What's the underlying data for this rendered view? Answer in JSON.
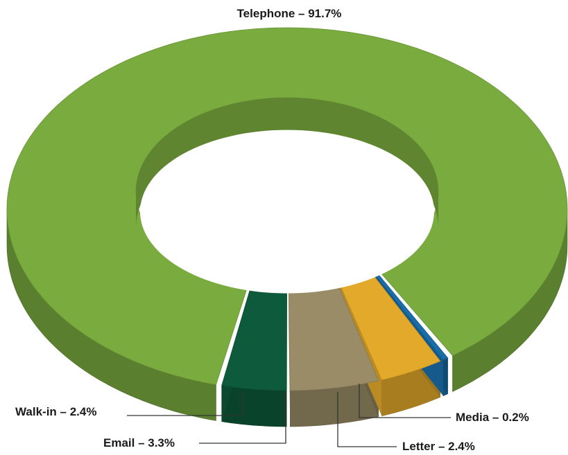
{
  "chart_data": {
    "type": "pie",
    "variant": "3d-donut",
    "categories": [
      "Telephone",
      "Walk-in",
      "Email",
      "Letter",
      "Media"
    ],
    "values": [
      91.7,
      2.4,
      3.3,
      2.4,
      0.2
    ],
    "labels": [
      "Telephone – 91.7%",
      "Walk-in – 2.4%",
      "Email – 3.3%",
      "Letter – 2.4%",
      "Media – 0.2%"
    ],
    "colors": {
      "Telephone": "#7aab3f",
      "Walk-in": "#0d5a3c",
      "Email": "#9a8c67",
      "Letter": "#e2a92a",
      "Media": "#1a6ea8"
    },
    "legend": "none"
  }
}
